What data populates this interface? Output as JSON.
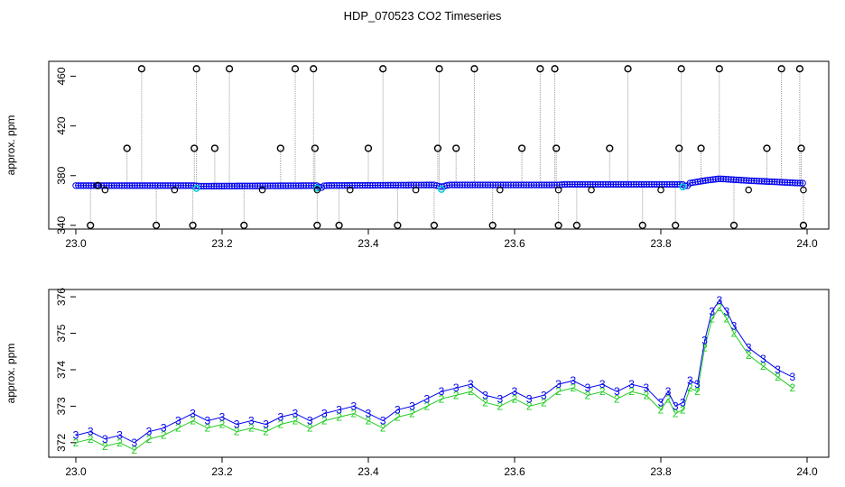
{
  "title": "HDP_070523  CO2 Timeseries",
  "colors": {
    "blue": "#0000ee",
    "cyan": "#00cccc",
    "green": "#22cc22",
    "gray": "#9a9a9a",
    "black": "#000000"
  },
  "chart_data": [
    {
      "type": "scatter",
      "ylabel": "approx. ppm",
      "xlim": [
        23.0,
        24.0
      ],
      "ylim": [
        337,
        472
      ],
      "xticks": [
        "23.0",
        "23.2",
        "23.4",
        "23.6",
        "23.8",
        "24.0"
      ],
      "yticks": [
        "340",
        "380",
        "420",
        "460"
      ],
      "baseline": [
        [
          23.0,
          372
        ],
        [
          23.16,
          372
        ],
        [
          23.17,
          371.5
        ],
        [
          23.33,
          372
        ],
        [
          23.335,
          370
        ],
        [
          23.34,
          372
        ],
        [
          23.49,
          372.5
        ],
        [
          23.5,
          371
        ],
        [
          23.51,
          372.5
        ],
        [
          23.66,
          372.5
        ],
        [
          23.67,
          373
        ],
        [
          23.83,
          373
        ],
        [
          23.835,
          371
        ],
        [
          23.84,
          374
        ],
        [
          23.86,
          376
        ],
        [
          23.88,
          377.5
        ],
        [
          23.92,
          376
        ],
        [
          23.99,
          374
        ]
      ],
      "spikes": [
        [
          23.02,
          340
        ],
        [
          23.03,
          372
        ],
        [
          23.07,
          402
        ],
        [
          23.09,
          466
        ],
        [
          23.11,
          340
        ],
        [
          23.16,
          340
        ],
        [
          23.162,
          402
        ],
        [
          23.165,
          466
        ],
        [
          23.19,
          402
        ],
        [
          23.21,
          466
        ],
        [
          23.23,
          340
        ],
        [
          23.28,
          402
        ],
        [
          23.3,
          466
        ],
        [
          23.325,
          466
        ],
        [
          23.327,
          402
        ],
        [
          23.33,
          340
        ],
        [
          23.36,
          340
        ],
        [
          23.4,
          402
        ],
        [
          23.42,
          466
        ],
        [
          23.44,
          340
        ],
        [
          23.49,
          340
        ],
        [
          23.495,
          402
        ],
        [
          23.497,
          466
        ],
        [
          23.52,
          402
        ],
        [
          23.545,
          466
        ],
        [
          23.57,
          340
        ],
        [
          23.61,
          402
        ],
        [
          23.635,
          466
        ],
        [
          23.655,
          466
        ],
        [
          23.657,
          402
        ],
        [
          23.66,
          340
        ],
        [
          23.685,
          340
        ],
        [
          23.73,
          402
        ],
        [
          23.755,
          466
        ],
        [
          23.775,
          340
        ],
        [
          23.82,
          340
        ],
        [
          23.825,
          402
        ],
        [
          23.828,
          466
        ],
        [
          23.855,
          402
        ],
        [
          23.88,
          466
        ],
        [
          23.9,
          340
        ],
        [
          23.945,
          402
        ],
        [
          23.965,
          466
        ],
        [
          23.99,
          466
        ],
        [
          23.992,
          402
        ],
        [
          23.995,
          340
        ]
      ],
      "low_points": [
        [
          23.04,
          368.5
        ],
        [
          23.135,
          368.5
        ],
        [
          23.255,
          368.5
        ],
        [
          23.33,
          368.5
        ],
        [
          23.375,
          368.5
        ],
        [
          23.465,
          368.5
        ],
        [
          23.58,
          368.5
        ],
        [
          23.66,
          368.5
        ],
        [
          23.705,
          368.5
        ],
        [
          23.8,
          368.5
        ],
        [
          23.92,
          368.5
        ],
        [
          23.995,
          368.5
        ]
      ]
    },
    {
      "type": "line",
      "ylabel": "approx. ppm",
      "xlim": [
        23.0,
        24.0
      ],
      "ylim": [
        371.6,
        376.2
      ],
      "xticks": [
        "23.0",
        "23.2",
        "23.4",
        "23.6",
        "23.8",
        "24.0"
      ],
      "yticks": [
        "372",
        "373",
        "374",
        "375",
        "376"
      ],
      "series": [
        {
          "name": "3",
          "x": [
            23.0,
            23.02,
            23.04,
            23.06,
            23.08,
            23.1,
            23.12,
            23.14,
            23.16,
            23.18,
            23.2,
            23.22,
            23.24,
            23.26,
            23.28,
            23.3,
            23.32,
            23.34,
            23.36,
            23.38,
            23.4,
            23.42,
            23.44,
            23.46,
            23.48,
            23.5,
            23.52,
            23.54,
            23.56,
            23.58,
            23.6,
            23.62,
            23.64,
            23.66,
            23.68,
            23.7,
            23.72,
            23.74,
            23.76,
            23.78,
            23.8,
            23.81,
            23.82,
            23.83,
            23.84,
            23.85,
            23.86,
            23.87,
            23.88,
            23.89,
            23.9,
            23.92,
            23.94,
            23.96,
            23.98
          ],
          "y": [
            372.2,
            372.3,
            372.1,
            372.2,
            372.0,
            372.3,
            372.4,
            372.6,
            372.8,
            372.6,
            372.7,
            372.5,
            372.6,
            372.5,
            372.7,
            372.8,
            372.6,
            372.8,
            372.9,
            373.0,
            372.8,
            372.6,
            372.9,
            373.0,
            373.2,
            373.4,
            373.5,
            373.6,
            373.3,
            373.2,
            373.4,
            373.2,
            373.3,
            373.6,
            373.7,
            373.5,
            373.6,
            373.4,
            373.6,
            373.5,
            373.1,
            373.4,
            373.0,
            373.1,
            373.7,
            373.6,
            374.8,
            375.6,
            375.9,
            375.6,
            375.2,
            374.6,
            374.3,
            374.0,
            373.8
          ]
        },
        {
          "name": "2",
          "x": [
            23.0,
            23.02,
            23.04,
            23.06,
            23.08,
            23.1,
            23.12,
            23.14,
            23.16,
            23.18,
            23.2,
            23.22,
            23.24,
            23.26,
            23.28,
            23.3,
            23.32,
            23.34,
            23.36,
            23.38,
            23.4,
            23.42,
            23.44,
            23.46,
            23.48,
            23.5,
            23.52,
            23.54,
            23.56,
            23.58,
            23.6,
            23.62,
            23.64,
            23.66,
            23.68,
            23.7,
            23.72,
            23.74,
            23.76,
            23.78,
            23.8,
            23.81,
            23.82,
            23.83,
            23.84,
            23.85,
            23.86,
            23.87,
            23.88,
            23.89,
            23.9,
            23.92,
            23.94,
            23.96,
            23.98
          ],
          "y": [
            372.0,
            372.1,
            371.9,
            372.0,
            371.8,
            372.1,
            372.2,
            372.4,
            372.6,
            372.4,
            372.5,
            372.3,
            372.4,
            372.3,
            372.5,
            372.6,
            372.4,
            372.6,
            372.7,
            372.8,
            372.6,
            372.4,
            372.7,
            372.8,
            373.0,
            373.2,
            373.3,
            373.4,
            373.1,
            373.0,
            373.2,
            373.0,
            373.1,
            373.4,
            373.5,
            373.3,
            373.4,
            373.2,
            373.4,
            373.3,
            372.9,
            373.2,
            372.8,
            372.9,
            373.5,
            373.4,
            374.6,
            375.4,
            375.7,
            375.4,
            375.0,
            374.4,
            374.1,
            373.8,
            373.5
          ]
        }
      ]
    }
  ]
}
